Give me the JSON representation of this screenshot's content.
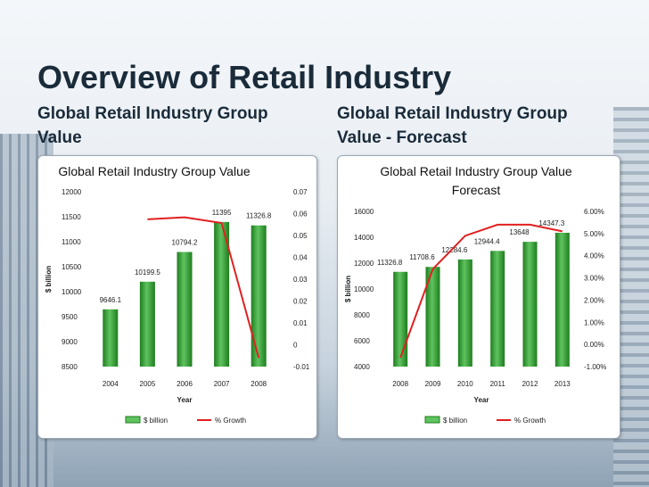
{
  "page": {
    "title": "Overview of Retail Industry",
    "left_heading_line1": "Global Retail Industry Group",
    "left_heading_line2": "Value",
    "right_heading_line1": "Global Retail Industry Group",
    "right_heading_line2": "Value - Forecast"
  },
  "colors": {
    "bar": "#1e7d1e",
    "bar_highlight": "#5fc35f",
    "line": "#e02020",
    "text": "#1a2b3a"
  },
  "chart_data": [
    {
      "type": "bar",
      "title": "Global Retail Industry Group Value",
      "xlabel": "Year",
      "ylabel": "$ billion",
      "categories": [
        "2004",
        "2005",
        "2006",
        "2007",
        "2008"
      ],
      "series": [
        {
          "name": "$ billion",
          "type": "bar",
          "axis": "left",
          "values": [
            9646.1,
            10199.5,
            10794.2,
            11395,
            11326.8
          ],
          "value_labels": [
            "9646.1",
            "10199.5",
            "10794.2",
            "11395",
            "11326.8"
          ]
        },
        {
          "name": "% Growth",
          "type": "line",
          "axis": "right",
          "values": [
            null,
            0.0574,
            0.0583,
            0.0557,
            -0.006
          ]
        }
      ],
      "ylim": [
        8500,
        12000
      ],
      "yticks": [
        "8500",
        "9000",
        "9500",
        "10000",
        "10500",
        "11000",
        "11500",
        "12000"
      ],
      "y2lim": [
        -0.01,
        0.07
      ],
      "y2ticks": [
        "-0.01",
        "0",
        "0.01",
        "0.02",
        "0.03",
        "0.04",
        "0.05",
        "0.06",
        "0.07"
      ],
      "legend": "bottom",
      "grid": false
    },
    {
      "type": "bar",
      "title": "Global Retail Industry Group Value Forecast",
      "xlabel": "Year",
      "ylabel": "$ billion",
      "categories": [
        "2008",
        "2009",
        "2010",
        "2011",
        "2012",
        "2013"
      ],
      "series": [
        {
          "name": "$ billion",
          "type": "bar",
          "axis": "left",
          "values": [
            11326.8,
            11708.6,
            12284.6,
            12944.4,
            13648,
            14347.3
          ],
          "value_labels": [
            "11326.8",
            "11708.6",
            "12284.6",
            "12944.4",
            "13648",
            "14347.3"
          ]
        },
        {
          "name": "% Growth",
          "type": "line",
          "axis": "right",
          "values": [
            -0.006,
            0.034,
            0.049,
            0.054,
            0.054,
            0.051
          ]
        }
      ],
      "ylim": [
        4000,
        16000
      ],
      "yticks": [
        "4000",
        "6000",
        "8000",
        "10000",
        "12000",
        "14000",
        "16000"
      ],
      "y2lim": [
        -0.01,
        0.06
      ],
      "y2ticks": [
        "-1.00%",
        "0.00%",
        "1.00%",
        "2.00%",
        "3.00%",
        "4.00%",
        "5.00%",
        "6.00%"
      ],
      "legend": "bottom",
      "grid": false
    }
  ]
}
